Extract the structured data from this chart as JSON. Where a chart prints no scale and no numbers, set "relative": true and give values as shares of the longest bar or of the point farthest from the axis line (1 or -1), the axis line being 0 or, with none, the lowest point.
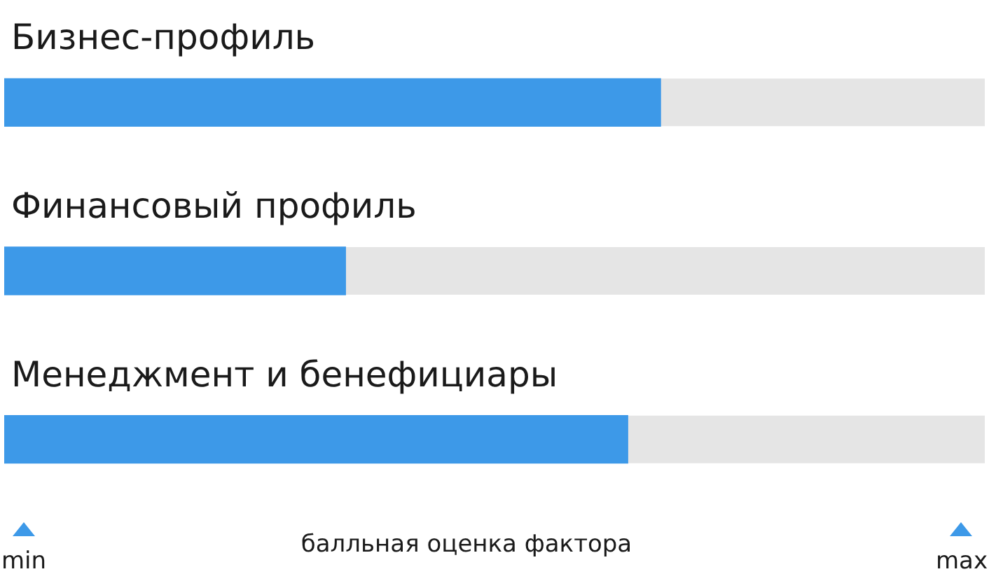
{
  "chart_data": {
    "type": "bar",
    "orientation": "horizontal",
    "relative": true,
    "categories": [
      "Бизнес-профиль",
      "Финансовый профиль",
      "Менеджмент и бенефициары"
    ],
    "values": [
      1,
      0.52,
      0.95
    ],
    "color": "#3d99e8",
    "xlabel": "балльная оценка фактора",
    "annotations": [
      "min",
      "max"
    ]
  }
}
